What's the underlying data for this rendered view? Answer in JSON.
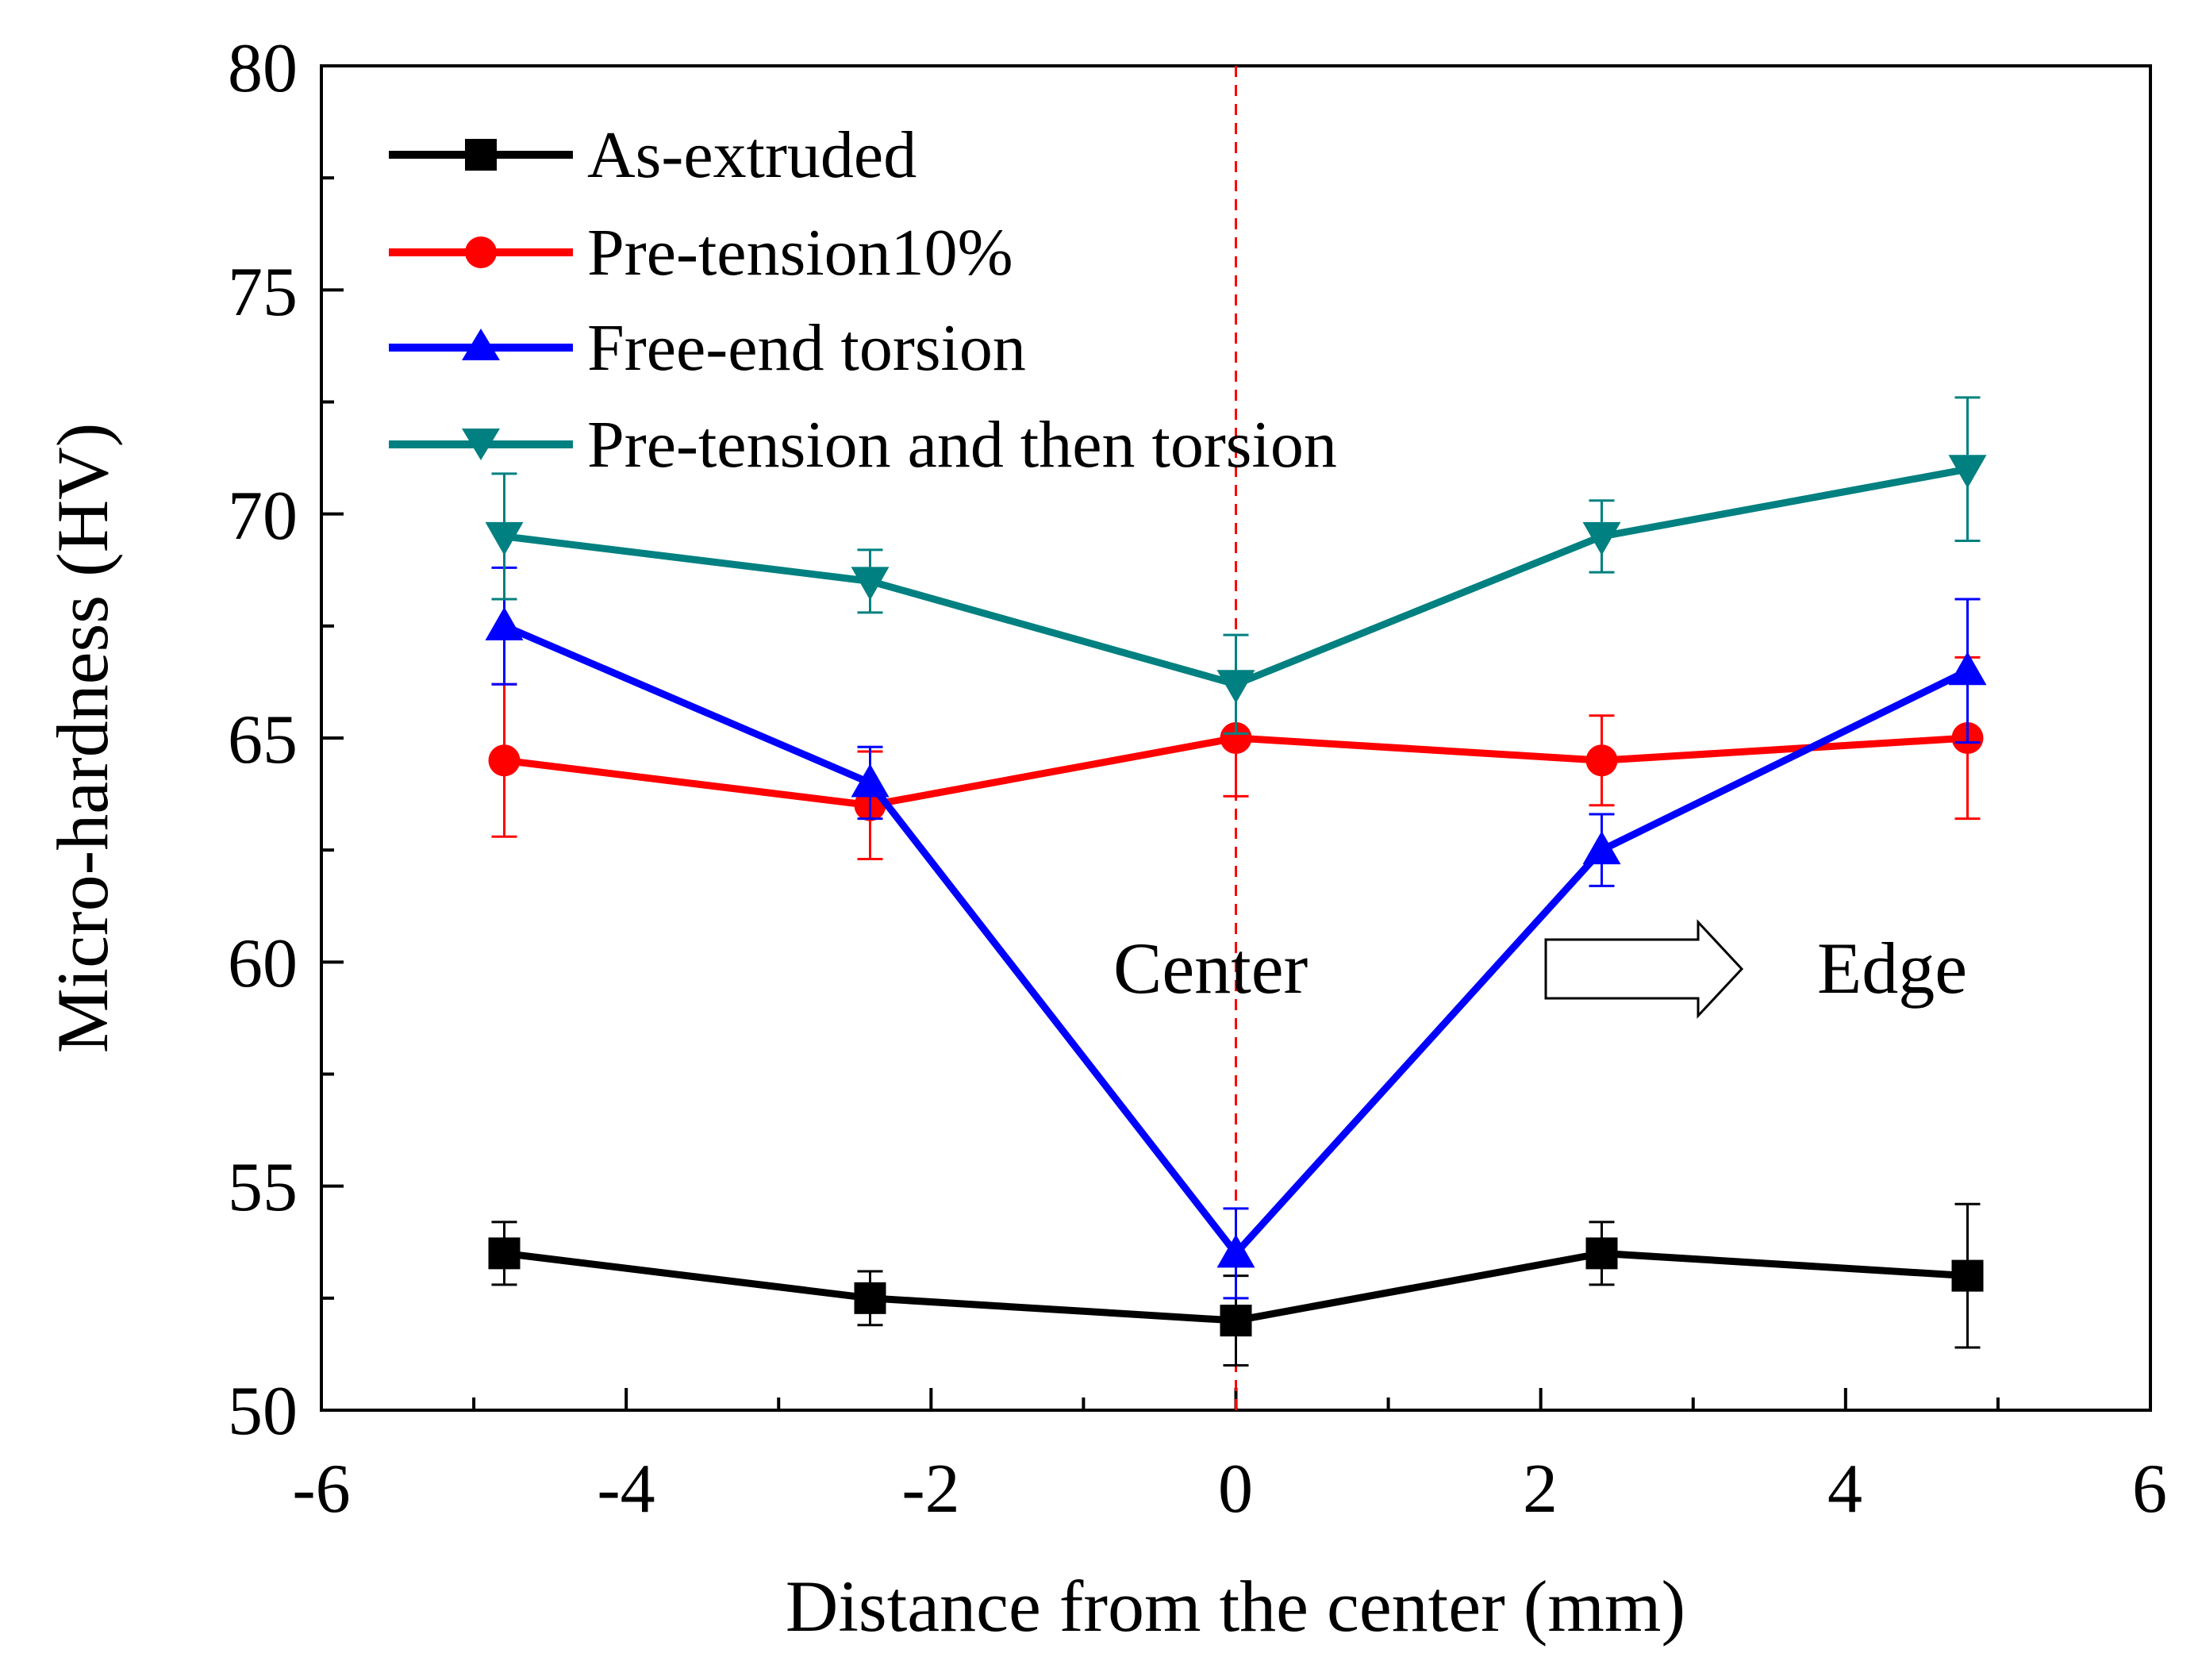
{
  "chart_data": {
    "type": "line",
    "title": "",
    "xlabel": "Distance from the center (mm)",
    "ylabel": "Micro-hardness (HV)",
    "xlim": [
      -6,
      6
    ],
    "ylim": [
      50,
      80
    ],
    "xticks": [
      -6,
      -4,
      -2,
      0,
      2,
      4,
      6
    ],
    "yticks": [
      50,
      55,
      60,
      65,
      70,
      75,
      80
    ],
    "x": [
      -4.8,
      -2.4,
      0,
      2.4,
      4.8
    ],
    "legend_position": "top-left",
    "series": [
      {
        "name": "As-extruded",
        "color": "#000000",
        "marker": "square",
        "values": [
          53.5,
          52.5,
          52.0,
          53.5,
          53.0
        ],
        "errors": [
          0.7,
          0.6,
          1.0,
          0.7,
          1.6
        ]
      },
      {
        "name": "Pre-tension10%",
        "color": "#ff0000",
        "marker": "circle",
        "values": [
          64.5,
          63.5,
          65.0,
          64.5,
          65.0
        ],
        "errors": [
          1.7,
          1.2,
          1.3,
          1.0,
          1.8
        ]
      },
      {
        "name": "Free-end torsion",
        "color": "#0000ff",
        "marker": "triangle-up",
        "values": [
          67.5,
          64.0,
          53.5,
          62.5,
          66.5
        ],
        "errors": [
          1.3,
          0.8,
          1.0,
          0.8,
          1.6
        ]
      },
      {
        "name": "Pre-tension and then torsion",
        "color": "#008080",
        "marker": "triangle-down",
        "values": [
          69.5,
          68.5,
          66.2,
          69.5,
          71.0
        ],
        "errors": [
          1.4,
          0.7,
          1.1,
          0.8,
          1.6
        ]
      }
    ],
    "annotations": {
      "center_label": "Center",
      "edge_label": "Edge",
      "center_line_x": 0,
      "center_line_color": "#ff0000"
    }
  }
}
